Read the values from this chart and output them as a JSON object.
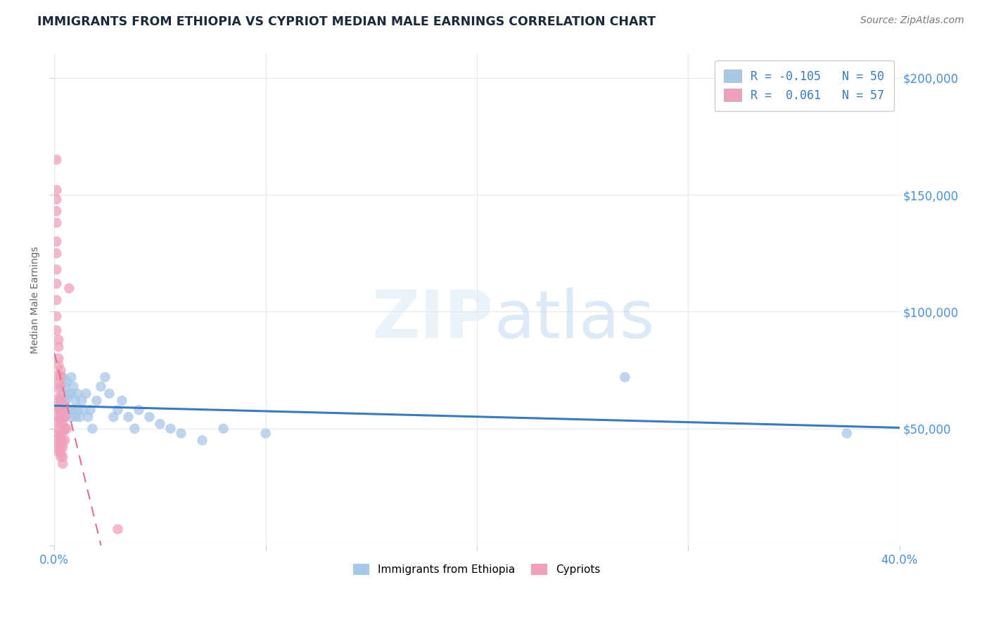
{
  "title": "IMMIGRANTS FROM ETHIOPIA VS CYPRIOT MEDIAN MALE EARNINGS CORRELATION CHART",
  "source": "Source: ZipAtlas.com",
  "ylabel": "Median Male Earnings",
  "xlim": [
    0.0,
    0.4
  ],
  "ylim": [
    0,
    210000
  ],
  "yticks": [
    0,
    50000,
    100000,
    150000,
    200000
  ],
  "ytick_labels": [
    "",
    "$50,000",
    "$100,000",
    "$150,000",
    "$200,000"
  ],
  "xticks": [
    0.0,
    0.1,
    0.2,
    0.3,
    0.4
  ],
  "xtick_labels": [
    "0.0%",
    "",
    "",
    "",
    "40.0%"
  ],
  "legend_label1": "R = -0.105   N = 50",
  "legend_label2": "R =  0.061   N = 57",
  "series1_name": "Immigrants from Ethiopia",
  "series1_color": "#a8c8e8",
  "series2_name": "Cypriots",
  "series2_color": "#f0a0b8",
  "trendline1_color": "#3a7abf",
  "trendline2_color": "#e07090",
  "background_color": "#ffffff",
  "grid_color": "#e8e8e8",
  "title_color": "#1a2a3a",
  "axis_label_color": "#666666",
  "tick_color_y": "#4a90d9",
  "tick_color_x": "#4a90d9",
  "series1_x": [
    0.002,
    0.003,
    0.003,
    0.004,
    0.004,
    0.004,
    0.005,
    0.005,
    0.005,
    0.005,
    0.006,
    0.006,
    0.006,
    0.007,
    0.007,
    0.008,
    0.008,
    0.008,
    0.009,
    0.009,
    0.01,
    0.01,
    0.011,
    0.011,
    0.012,
    0.013,
    0.014,
    0.015,
    0.016,
    0.017,
    0.018,
    0.02,
    0.022,
    0.024,
    0.026,
    0.028,
    0.03,
    0.032,
    0.035,
    0.038,
    0.04,
    0.045,
    0.05,
    0.055,
    0.06,
    0.07,
    0.08,
    0.1,
    0.27,
    0.375
  ],
  "series1_y": [
    58000,
    62000,
    55000,
    72000,
    65000,
    58000,
    68000,
    62000,
    55000,
    50000,
    70000,
    63000,
    57000,
    65000,
    58000,
    72000,
    65000,
    55000,
    68000,
    58000,
    62000,
    55000,
    65000,
    58000,
    55000,
    62000,
    58000,
    65000,
    55000,
    58000,
    50000,
    62000,
    68000,
    72000,
    65000,
    55000,
    58000,
    62000,
    55000,
    50000,
    58000,
    55000,
    52000,
    50000,
    48000,
    45000,
    50000,
    48000,
    72000,
    48000
  ],
  "series2_x": [
    0.001,
    0.001,
    0.001,
    0.001,
    0.001,
    0.001,
    0.001,
    0.001,
    0.001,
    0.001,
    0.001,
    0.001,
    0.002,
    0.002,
    0.002,
    0.002,
    0.002,
    0.002,
    0.002,
    0.002,
    0.002,
    0.002,
    0.002,
    0.002,
    0.002,
    0.002,
    0.002,
    0.002,
    0.002,
    0.002,
    0.003,
    0.003,
    0.003,
    0.003,
    0.003,
    0.003,
    0.003,
    0.003,
    0.003,
    0.003,
    0.003,
    0.003,
    0.004,
    0.004,
    0.004,
    0.004,
    0.004,
    0.004,
    0.004,
    0.004,
    0.005,
    0.005,
    0.005,
    0.005,
    0.006,
    0.007,
    0.03
  ],
  "series2_y": [
    165000,
    152000,
    148000,
    143000,
    138000,
    130000,
    125000,
    118000,
    112000,
    105000,
    98000,
    92000,
    88000,
    85000,
    80000,
    77000,
    73000,
    70000,
    67000,
    63000,
    60000,
    58000,
    55000,
    53000,
    50000,
    48000,
    46000,
    44000,
    42000,
    40000,
    75000,
    72000,
    68000,
    63000,
    58000,
    55000,
    52000,
    48000,
    45000,
    42000,
    40000,
    38000,
    58000,
    55000,
    52000,
    48000,
    45000,
    42000,
    38000,
    35000,
    60000,
    55000,
    50000,
    45000,
    50000,
    110000,
    7000
  ]
}
